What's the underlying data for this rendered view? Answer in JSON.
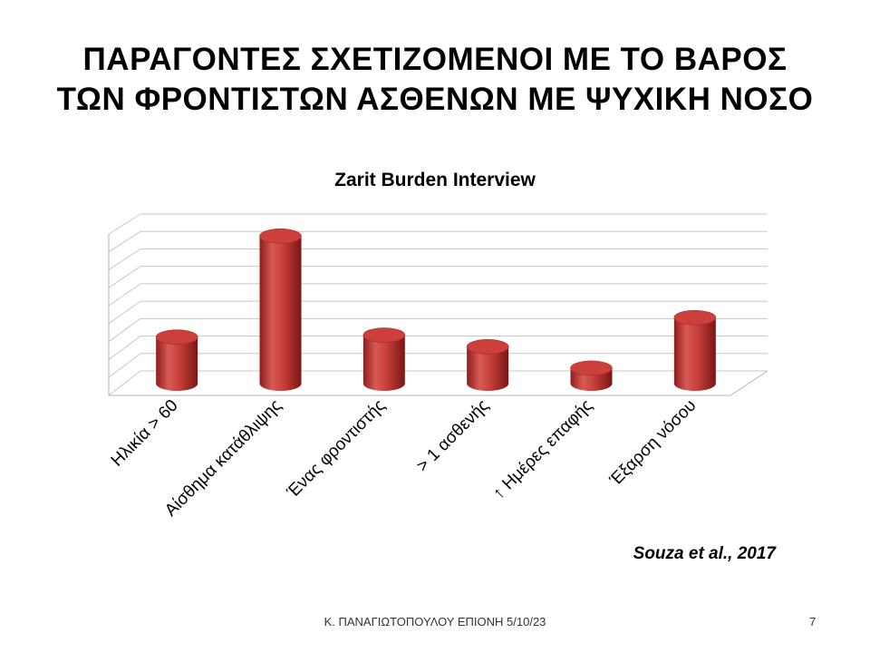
{
  "slide": {
    "title_lines": [
      "ΠΑΡΑΓΟΝΤΕΣ ΣΧΕΤΙΖΟΜΕΝΟΙ ΜΕ ΤΟ ΒΑΡΟΣ",
      "ΤΩΝ ΦΡΟΝΤΙΣΤΩΝ ΑΣΘΕΝΩΝ ΜΕ ΨΥΧΙΚΗ ΝΟΣΟ"
    ],
    "source": "Souza et al., 2017",
    "footer": "Κ. ΠΑΝΑΓΙΩΤΟΠΟΥΛΟΥ ΕΠΙΟΝΗ 5/10/23",
    "page_number": "7"
  },
  "chart_data": {
    "type": "bar",
    "style": "3d-cylinder",
    "title": "Zarit Burden Interview",
    "categories": [
      "Ηλικία > 60",
      "Αίσθημα κατάθλιψης",
      "Ένας φροντιστής",
      "> 1 ασθενής",
      "↑ Ημέρες επαφής",
      "Έξαρση νόσου"
    ],
    "values": [
      2.4,
      7.6,
      2.5,
      1.9,
      0.8,
      3.4
    ],
    "ylim": [
      0,
      9
    ],
    "grid": true,
    "gridlines": 9,
    "y_tick_labels_shown": false,
    "legend": "none",
    "bar_color": "#c0392b"
  }
}
